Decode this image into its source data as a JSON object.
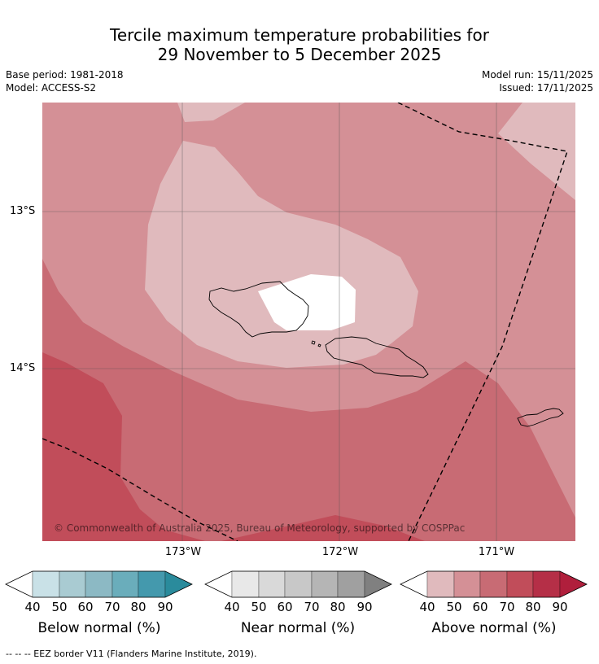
{
  "title": {
    "line1": "Tercile maximum temperature probabilities for",
    "line2": "29 November to 5 December 2025"
  },
  "meta": {
    "base_period": "Base period: 1981-2018",
    "model": "Model: ACCESS-S2",
    "model_run": "Model run: 15/11/2025",
    "issued": "Issued: 17/11/2025"
  },
  "axes": {
    "lat_labels": [
      "13°S",
      "14°S"
    ],
    "lon_labels": [
      "173°W",
      "172°W",
      "171°W"
    ]
  },
  "copyright": "© Commonwealth of Australia 2025, Bureau of Meteorology, supported by COSPPac",
  "colorbars": [
    {
      "name": "below",
      "title": "Below normal (%)",
      "ticks": [
        "40",
        "50",
        "60",
        "70",
        "80",
        "90"
      ],
      "colors": [
        "#ffffff",
        "#c9e1e7",
        "#a9cbd2",
        "#8cb9c4",
        "#6aadbb",
        "#4499ad",
        "#2a8b9c"
      ]
    },
    {
      "name": "near",
      "title": "Near normal (%)",
      "ticks": [
        "40",
        "50",
        "60",
        "70",
        "80",
        "90"
      ],
      "colors": [
        "#ffffff",
        "#e8e8e8",
        "#d9d9d9",
        "#c8c8c8",
        "#b5b5b5",
        "#a0a0a0",
        "#808080"
      ]
    },
    {
      "name": "above",
      "title": "Above normal (%)",
      "ticks": [
        "40",
        "50",
        "60",
        "70",
        "80",
        "90"
      ],
      "colors": [
        "#ffffff",
        "#e0babd",
        "#d49096",
        "#c86b74",
        "#c14d5a",
        "#b52f47",
        "#b01f3c"
      ]
    }
  ],
  "map_colors": {
    "white": "#ffffff",
    "p40": "#e0babd",
    "p50": "#d49096",
    "p60": "#c86b74",
    "p70": "#c14d5a"
  },
  "footnote": "-- -- -- EEZ border V11 (Flanders Marine Institute, 2019)."
}
